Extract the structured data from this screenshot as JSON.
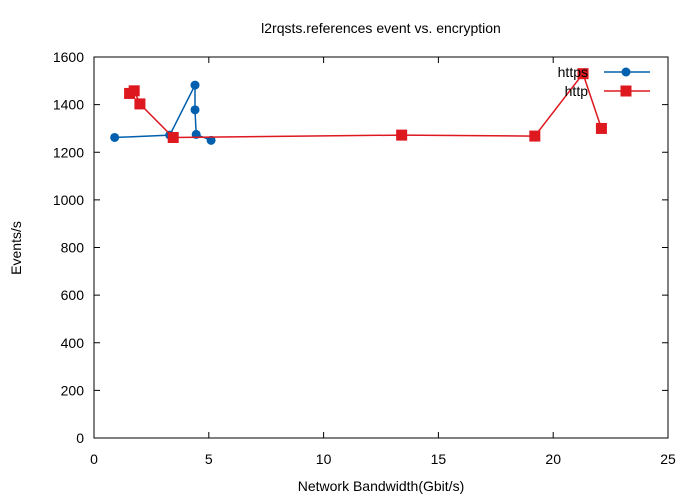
{
  "chart_data": {
    "type": "line",
    "title": "l2rqsts.references event vs. encryption",
    "xlabel": "Network Bandwidth(Gbit/s)",
    "ylabel": "Events/s",
    "xlim": [
      0,
      25
    ],
    "ylim": [
      0,
      1600
    ],
    "xticks": [
      0,
      5,
      10,
      15,
      20,
      25
    ],
    "yticks": [
      0,
      200,
      400,
      600,
      800,
      1000,
      1200,
      1400,
      1600
    ],
    "grid": false,
    "legend_position": "top-right",
    "series": [
      {
        "name": "https",
        "color": "#0060ad",
        "marker": "circle",
        "points": [
          {
            "x": 0.9,
            "y": 1262
          },
          {
            "x": 3.3,
            "y": 1272
          },
          {
            "x": 4.4,
            "y": 1482
          },
          {
            "x": 4.4,
            "y": 1378
          },
          {
            "x": 4.45,
            "y": 1275
          },
          {
            "x": 5.1,
            "y": 1250
          }
        ]
      },
      {
        "name": "http",
        "color": "#dd181f",
        "marker": "square",
        "points": [
          {
            "x": 1.55,
            "y": 1447
          },
          {
            "x": 1.75,
            "y": 1458
          },
          {
            "x": 2.0,
            "y": 1403
          },
          {
            "x": 3.45,
            "y": 1262
          },
          {
            "x": 13.4,
            "y": 1272
          },
          {
            "x": 19.2,
            "y": 1268
          },
          {
            "x": 21.3,
            "y": 1530
          },
          {
            "x": 22.1,
            "y": 1300
          }
        ]
      }
    ]
  }
}
